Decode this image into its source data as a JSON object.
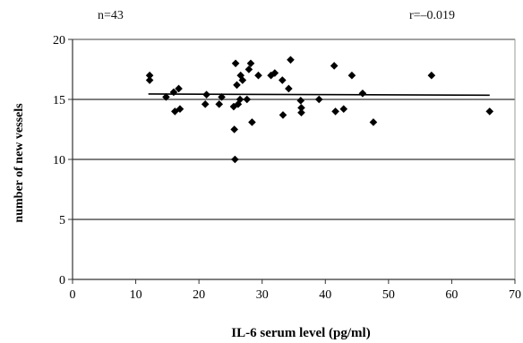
{
  "chart_data": {
    "type": "scatter",
    "title": "",
    "xlabel": "IL-6 serum level (pg/ml)",
    "ylabel": "number of new vessels",
    "xlim": [
      0,
      70
    ],
    "ylim": [
      0,
      20
    ],
    "x_ticks": [
      0,
      10,
      20,
      30,
      40,
      50,
      60,
      70
    ],
    "y_ticks": [
      0,
      5,
      10,
      15,
      20
    ],
    "grid": {
      "horizontal": true,
      "vertical": false
    },
    "legend": "none",
    "annotations": {
      "n": "n=43",
      "r": "r=–0.019"
    },
    "marker_color": "#000000",
    "series": [
      {
        "points": [
          [
            12.2,
            17.0
          ],
          [
            12.2,
            16.6
          ],
          [
            14.8,
            15.2
          ],
          [
            16.0,
            15.6
          ],
          [
            16.2,
            14.0
          ],
          [
            16.8,
            15.9
          ],
          [
            17.0,
            14.2
          ],
          [
            21.2,
            15.4
          ],
          [
            21.0,
            14.6
          ],
          [
            23.2,
            14.6
          ],
          [
            23.6,
            15.2
          ],
          [
            25.5,
            14.4
          ],
          [
            25.6,
            12.5
          ],
          [
            25.7,
            10.0
          ],
          [
            25.8,
            18.0
          ],
          [
            26.0,
            16.2
          ],
          [
            26.2,
            14.6
          ],
          [
            26.5,
            15.0
          ],
          [
            26.6,
            17.0
          ],
          [
            26.9,
            16.6
          ],
          [
            27.6,
            15.0
          ],
          [
            27.9,
            17.5
          ],
          [
            28.2,
            18.0
          ],
          [
            28.4,
            13.1
          ],
          [
            29.4,
            17.0
          ],
          [
            31.4,
            17.0
          ],
          [
            32.0,
            17.2
          ],
          [
            33.2,
            16.6
          ],
          [
            33.3,
            13.7
          ],
          [
            34.2,
            15.9
          ],
          [
            34.5,
            18.3
          ],
          [
            36.1,
            14.9
          ],
          [
            36.2,
            14.3
          ],
          [
            36.2,
            13.9
          ],
          [
            39.0,
            15.0
          ],
          [
            41.4,
            17.8
          ],
          [
            41.6,
            14.0
          ],
          [
            42.9,
            14.2
          ],
          [
            44.2,
            17.0
          ],
          [
            45.9,
            15.5
          ],
          [
            47.6,
            13.1
          ],
          [
            56.8,
            17.0
          ],
          [
            66.0,
            14.0
          ]
        ]
      }
    ],
    "trend_line": {
      "x": [
        12,
        66
      ],
      "y": [
        15.45,
        15.35
      ]
    }
  }
}
